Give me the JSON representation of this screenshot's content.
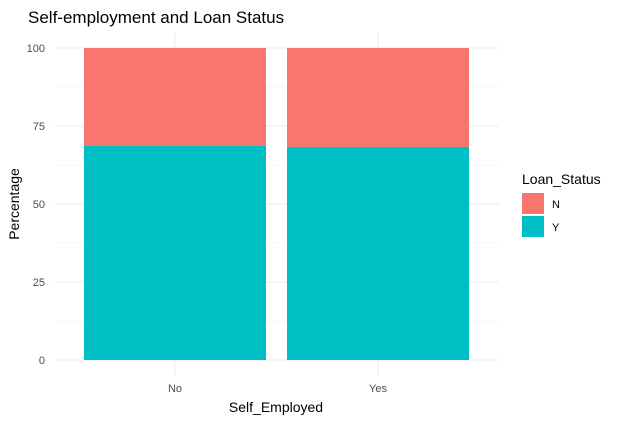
{
  "chart_data": {
    "type": "bar",
    "stacked": true,
    "title": "Self-employment and Loan Status",
    "xlabel": "Self_Employed",
    "ylabel": "Percentage",
    "categories": [
      "No",
      "Yes"
    ],
    "ylim": [
      0,
      100
    ],
    "yticks": [
      "0",
      "25",
      "50",
      "75",
      "100"
    ],
    "grid": true,
    "legend": {
      "title": "Loan_Status",
      "position": "right"
    },
    "series": [
      {
        "name": "N",
        "color": "#F8766D",
        "values": [
          31.4,
          31.7
        ]
      },
      {
        "name": "Y",
        "color": "#00BFC4",
        "values": [
          68.6,
          68.3
        ]
      }
    ]
  }
}
